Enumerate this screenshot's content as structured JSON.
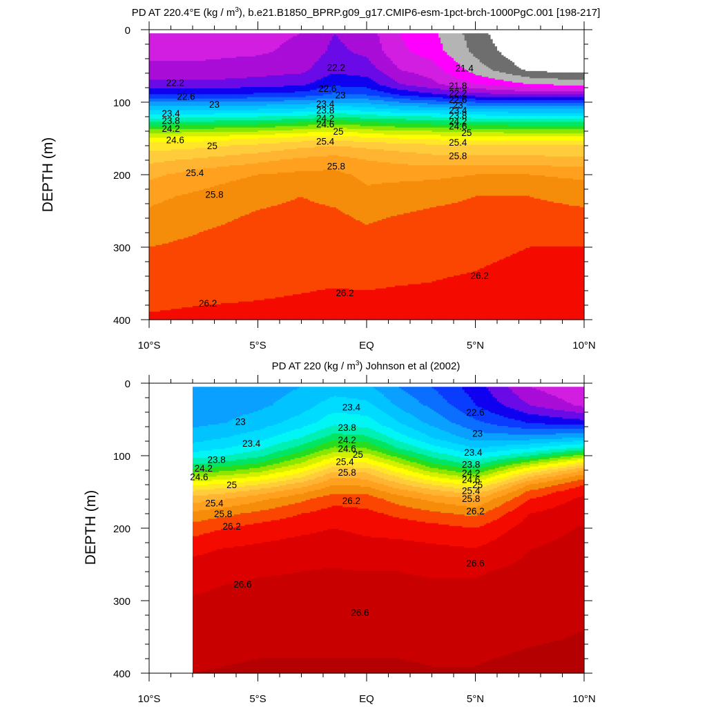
{
  "chart_data": [
    {
      "type": "contour",
      "title": "PD AT 220.4°E (kg / m",
      "title_sup": "3",
      "title_rest": "), b.e21.B1850_BPRP.g09_g17.CMIP6-esm-1pct-brch-1000PgC.001 [198-217]",
      "ylabel": "DEPTH (m)",
      "x_ticks": [
        {
          "label": "10°S",
          "value": -10
        },
        {
          "label": "5°S",
          "value": -5
        },
        {
          "label": "EQ",
          "value": 0
        },
        {
          "label": "5°N",
          "value": 5
        },
        {
          "label": "10°N",
          "value": 10
        }
      ],
      "y_ticks": [
        {
          "label": "0",
          "value": 0
        },
        {
          "label": "100",
          "value": 100
        },
        {
          "label": "200",
          "value": 200
        },
        {
          "label": "300",
          "value": 300
        },
        {
          "label": "400",
          "value": 400
        }
      ],
      "xlim": [
        -10,
        10
      ],
      "ylim": [
        0,
        400
      ],
      "y_reversed": true,
      "data_xlim": [
        -10,
        10
      ],
      "data_ylim": [
        5,
        400
      ],
      "contour_labels": [
        {
          "text": "22.2",
          "lat": -8.8,
          "depth": 73
        },
        {
          "text": "22.6",
          "lat": -8.3,
          "depth": 92
        },
        {
          "text": "23",
          "lat": -7.0,
          "depth": 103
        },
        {
          "text": "23.4",
          "lat": -9.0,
          "depth": 115
        },
        {
          "text": "23.8",
          "lat": -9.0,
          "depth": 125
        },
        {
          "text": "24.2",
          "lat": -9.0,
          "depth": 136
        },
        {
          "text": "24.6",
          "lat": -8.8,
          "depth": 152
        },
        {
          "text": "25",
          "lat": -7.1,
          "depth": 160
        },
        {
          "text": "25.4",
          "lat": -7.9,
          "depth": 197
        },
        {
          "text": "25.8",
          "lat": -7.0,
          "depth": 227
        },
        {
          "text": "26.2",
          "lat": -7.3,
          "depth": 377
        },
        {
          "text": "22.2",
          "lat": -1.4,
          "depth": 52
        },
        {
          "text": "22.6",
          "lat": -1.8,
          "depth": 81
        },
        {
          "text": "23",
          "lat": -1.2,
          "depth": 90
        },
        {
          "text": "23.4",
          "lat": -1.9,
          "depth": 102
        },
        {
          "text": "23.8",
          "lat": -1.9,
          "depth": 111
        },
        {
          "text": "24.2",
          "lat": -1.9,
          "depth": 122
        },
        {
          "text": "24.6",
          "lat": -1.9,
          "depth": 130
        },
        {
          "text": "25",
          "lat": -1.3,
          "depth": 140
        },
        {
          "text": "25.4",
          "lat": -1.9,
          "depth": 154
        },
        {
          "text": "25.8",
          "lat": -1.4,
          "depth": 188
        },
        {
          "text": "26.2",
          "lat": -1.0,
          "depth": 363
        },
        {
          "text": "21.4",
          "lat": 4.5,
          "depth": 53
        },
        {
          "text": "21.8",
          "lat": 4.2,
          "depth": 77
        },
        {
          "text": "22.2",
          "lat": 4.2,
          "depth": 87
        },
        {
          "text": "22.6",
          "lat": 4.2,
          "depth": 96
        },
        {
          "text": "23",
          "lat": 4.2,
          "depth": 104
        },
        {
          "text": "23.4",
          "lat": 4.2,
          "depth": 111
        },
        {
          "text": "23.8",
          "lat": 4.2,
          "depth": 118
        },
        {
          "text": "24.2",
          "lat": 4.2,
          "depth": 126
        },
        {
          "text": "24.6",
          "lat": 4.2,
          "depth": 133
        },
        {
          "text": "25",
          "lat": 4.6,
          "depth": 142
        },
        {
          "text": "25.4",
          "lat": 4.2,
          "depth": 155
        },
        {
          "text": "25.8",
          "lat": 4.2,
          "depth": 174
        },
        {
          "text": "26.2",
          "lat": 5.2,
          "depth": 339
        }
      ],
      "fill_levels": [
        {
          "level": 21.0,
          "color": "#ffffff"
        },
        {
          "level": 21.2,
          "color": "#6e6e6e"
        },
        {
          "level": 21.4,
          "color": "#b4b4b4"
        },
        {
          "level": 21.6,
          "color": "#ff00ff"
        },
        {
          "level": 21.8,
          "color": "#d21ee0"
        },
        {
          "level": 22.0,
          "color": "#aa0dd8"
        },
        {
          "level": 22.2,
          "color": "#6a0ae6"
        },
        {
          "level": 22.4,
          "color": "#1000f0"
        },
        {
          "level": 22.6,
          "color": "#0a3cff"
        },
        {
          "level": 22.8,
          "color": "#0a6eff"
        },
        {
          "level": 23.0,
          "color": "#0aa0ff"
        },
        {
          "level": 23.2,
          "color": "#00c3ff"
        },
        {
          "level": 23.4,
          "color": "#00dcff"
        },
        {
          "level": 23.6,
          "color": "#00f5f5"
        },
        {
          "level": 23.8,
          "color": "#00f0b4"
        },
        {
          "level": 24.0,
          "color": "#00e664"
        },
        {
          "level": 24.2,
          "color": "#28dc1e"
        },
        {
          "level": 24.4,
          "color": "#8ce600"
        },
        {
          "level": 24.6,
          "color": "#d2f000"
        },
        {
          "level": 24.8,
          "color": "#ffff00"
        },
        {
          "level": 25.0,
          "color": "#ffe628"
        },
        {
          "level": 25.2,
          "color": "#ffcd3c"
        },
        {
          "level": 25.4,
          "color": "#ffb432"
        },
        {
          "level": 25.6,
          "color": "#ffa01e"
        },
        {
          "level": 25.8,
          "color": "#f58c0a"
        },
        {
          "level": 26.0,
          "color": "#fa4600"
        },
        {
          "level": 26.2,
          "color": "#f50a00"
        },
        {
          "level": 26.4,
          "color": "#dc0000"
        },
        {
          "level": 26.6,
          "color": "#c80000"
        }
      ]
    },
    {
      "type": "contour",
      "title": "PD AT 220 (kg / m",
      "title_sup": "3",
      "title_rest": ") Johnson et al (2002)",
      "ylabel": "DEPTH (m)",
      "x_ticks": [
        {
          "label": "10°S",
          "value": -10
        },
        {
          "label": "5°S",
          "value": -5
        },
        {
          "label": "EQ",
          "value": 0
        },
        {
          "label": "5°N",
          "value": 5
        },
        {
          "label": "10°N",
          "value": 10
        }
      ],
      "y_ticks": [
        {
          "label": "0",
          "value": 0
        },
        {
          "label": "100",
          "value": 100
        },
        {
          "label": "200",
          "value": 200
        },
        {
          "label": "300",
          "value": 300
        },
        {
          "label": "400",
          "value": 400
        }
      ],
      "xlim": [
        -10,
        10
      ],
      "ylim": [
        0,
        400
      ],
      "y_reversed": true,
      "data_xlim": [
        -8,
        10
      ],
      "data_ylim": [
        5,
        400
      ],
      "contour_labels": [
        {
          "text": "23",
          "lat": -5.8,
          "depth": 53
        },
        {
          "text": "23.4",
          "lat": -5.3,
          "depth": 83
        },
        {
          "text": "23.8",
          "lat": -6.9,
          "depth": 105
        },
        {
          "text": "24.2",
          "lat": -7.5,
          "depth": 117
        },
        {
          "text": "24.6",
          "lat": -7.7,
          "depth": 129
        },
        {
          "text": "25",
          "lat": -6.2,
          "depth": 140
        },
        {
          "text": "25.4",
          "lat": -7.0,
          "depth": 165
        },
        {
          "text": "25.8",
          "lat": -6.6,
          "depth": 180
        },
        {
          "text": "26.2",
          "lat": -6.2,
          "depth": 197
        },
        {
          "text": "23.4",
          "lat": -0.7,
          "depth": 33
        },
        {
          "text": "23.8",
          "lat": -0.9,
          "depth": 61
        },
        {
          "text": "24.2",
          "lat": -0.9,
          "depth": 78
        },
        {
          "text": "24.6",
          "lat": -0.9,
          "depth": 90
        },
        {
          "text": "25",
          "lat": -0.4,
          "depth": 98
        },
        {
          "text": "25.4",
          "lat": -1.0,
          "depth": 108
        },
        {
          "text": "25.8",
          "lat": -0.9,
          "depth": 123
        },
        {
          "text": "26.2",
          "lat": -0.7,
          "depth": 162
        },
        {
          "text": "26.6",
          "lat": -5.7,
          "depth": 277
        },
        {
          "text": "26.6",
          "lat": -0.3,
          "depth": 316
        },
        {
          "text": "22.6",
          "lat": 5.0,
          "depth": 40
        },
        {
          "text": "23",
          "lat": 5.1,
          "depth": 69
        },
        {
          "text": "23.4",
          "lat": 4.9,
          "depth": 95
        },
        {
          "text": "23.8",
          "lat": 4.8,
          "depth": 112
        },
        {
          "text": "24.2",
          "lat": 4.8,
          "depth": 124
        },
        {
          "text": "24.6",
          "lat": 4.8,
          "depth": 133
        },
        {
          "text": "25",
          "lat": 5.1,
          "depth": 140
        },
        {
          "text": "25.4",
          "lat": 4.8,
          "depth": 148
        },
        {
          "text": "25.8",
          "lat": 4.8,
          "depth": 159
        },
        {
          "text": "26.2",
          "lat": 5.0,
          "depth": 176
        },
        {
          "text": "26.6",
          "lat": 5.0,
          "depth": 248
        }
      ],
      "fill_levels": [
        {
          "level": 21.0,
          "color": "#ffffff"
        },
        {
          "level": 21.2,
          "color": "#6e6e6e"
        },
        {
          "level": 21.4,
          "color": "#b4b4b4"
        },
        {
          "level": 21.6,
          "color": "#ff00ff"
        },
        {
          "level": 21.8,
          "color": "#d21ee0"
        },
        {
          "level": 22.0,
          "color": "#aa0dd8"
        },
        {
          "level": 22.2,
          "color": "#6a0ae6"
        },
        {
          "level": 22.4,
          "color": "#1000f0"
        },
        {
          "level": 22.6,
          "color": "#0a3cff"
        },
        {
          "level": 22.8,
          "color": "#0a6eff"
        },
        {
          "level": 23.0,
          "color": "#0aa0ff"
        },
        {
          "level": 23.2,
          "color": "#00c3ff"
        },
        {
          "level": 23.4,
          "color": "#00dcff"
        },
        {
          "level": 23.6,
          "color": "#00f5f5"
        },
        {
          "level": 23.8,
          "color": "#00f0b4"
        },
        {
          "level": 24.0,
          "color": "#00e664"
        },
        {
          "level": 24.2,
          "color": "#28dc1e"
        },
        {
          "level": 24.4,
          "color": "#8ce600"
        },
        {
          "level": 24.6,
          "color": "#d2f000"
        },
        {
          "level": 24.8,
          "color": "#ffff00"
        },
        {
          "level": 25.0,
          "color": "#ffe628"
        },
        {
          "level": 25.2,
          "color": "#ffcd3c"
        },
        {
          "level": 25.4,
          "color": "#ffb432"
        },
        {
          "level": 25.6,
          "color": "#ffa01e"
        },
        {
          "level": 25.8,
          "color": "#f58c0a"
        },
        {
          "level": 26.0,
          "color": "#fa4600"
        },
        {
          "level": 26.2,
          "color": "#f50a00"
        },
        {
          "level": 26.4,
          "color": "#dc0000"
        },
        {
          "level": 26.6,
          "color": "#c80000"
        },
        {
          "level": 26.8,
          "color": "#b40000"
        }
      ]
    }
  ]
}
